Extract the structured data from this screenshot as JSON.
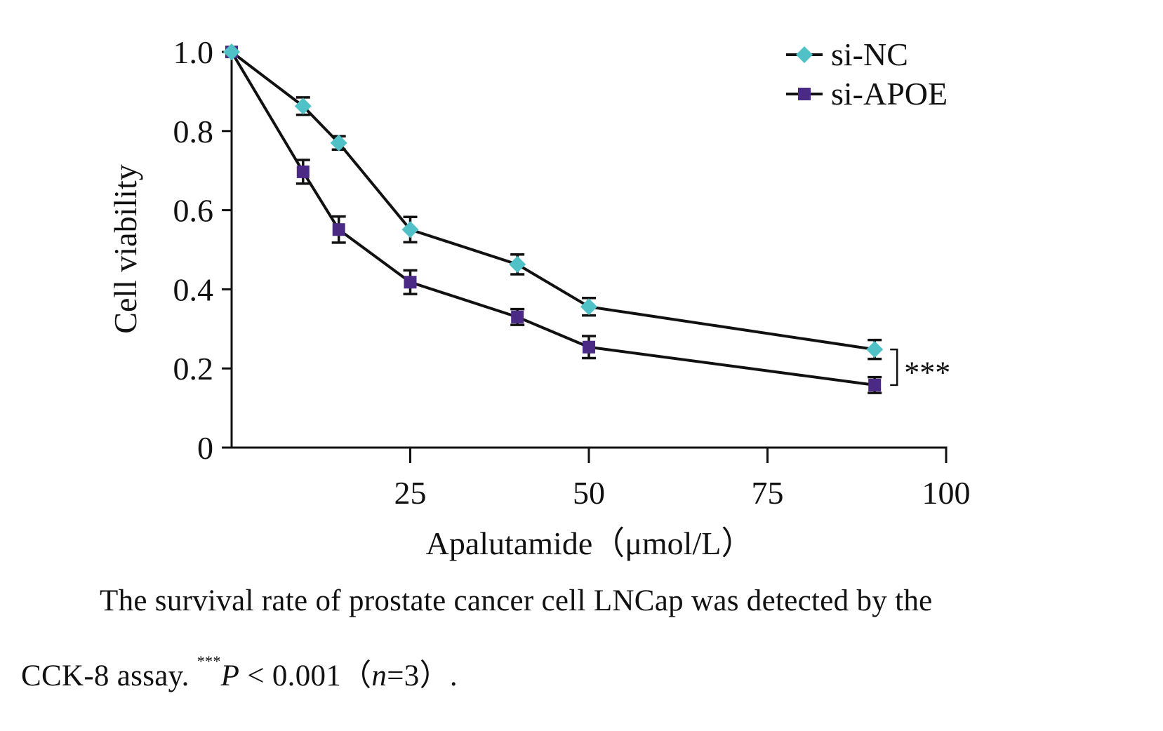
{
  "chart_data": {
    "type": "line",
    "title": "",
    "xlabel": "Apalutamide（μmol/L）",
    "ylabel": "Cell viability",
    "xlim": [
      0,
      100
    ],
    "ylim": [
      0,
      1.0
    ],
    "xticks": [
      25,
      50,
      75,
      100
    ],
    "xtick_labels": [
      "25",
      "50",
      "75",
      "100"
    ],
    "yticks": [
      0,
      0.2,
      0.4,
      0.6,
      0.8,
      1.0
    ],
    "ytick_labels": [
      "0",
      "0.2",
      "0.4",
      "0.6",
      "0.8",
      "1.0"
    ],
    "grid": false,
    "legend_position": "top-right",
    "x": [
      0,
      10,
      15,
      25,
      40,
      50,
      90
    ],
    "series": [
      {
        "name": "si-NC",
        "marker": "diamond",
        "color": "#4fc1c7",
        "values": [
          1.0,
          0.863,
          0.77,
          0.551,
          0.463,
          0.356,
          0.248
        ],
        "errors": [
          0,
          0.022,
          0.017,
          0.032,
          0.025,
          0.022,
          0.024
        ]
      },
      {
        "name": "si-APOE",
        "marker": "square",
        "color": "#4a2a85",
        "values": [
          1.0,
          0.697,
          0.551,
          0.418,
          0.33,
          0.254,
          0.158
        ],
        "errors": [
          0,
          0.03,
          0.033,
          0.03,
          0.02,
          0.028,
          0.02
        ]
      }
    ],
    "annotations": [
      {
        "text": "***",
        "between": [
          "si-NC",
          "si-APOE"
        ],
        "at_x": 90
      }
    ]
  },
  "caption": {
    "line1": "The survival rate of prostate cancer cell LNCap was detected by the",
    "line2_prefix": "CCK-8 assay. ",
    "line2_sup": "***",
    "line2_p": "P",
    "line2_mid": " < 0.001（",
    "line2_n": "n",
    "line2_end": "=3）."
  }
}
